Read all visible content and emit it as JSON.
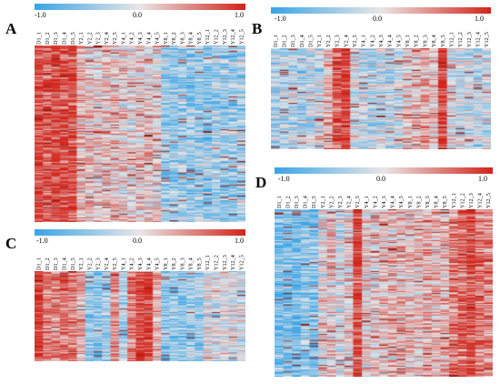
{
  "colors": {
    "low": "#3aa4e6",
    "mid": "#e9e6e6",
    "high": "#d1241b",
    "mark_dark": "#8b1a14"
  },
  "scale_ticks": {
    "min": "-1.0",
    "mid": "0.0",
    "max": "1.0"
  },
  "panels": [
    {
      "id": "A",
      "letter": "A",
      "columns": [
        "D1_1",
        "D1_2",
        "D1_3",
        "D1_4",
        "D1_5",
        "Y2_1",
        "Y2_2",
        "Y2_3",
        "Y2_4",
        "Y2_5",
        "Y4_1",
        "Y4_2",
        "Y4_3",
        "Y4_4",
        "Y4_5",
        "Y8_1",
        "Y8_2",
        "Y8_3",
        "Y8_4",
        "Y8_5",
        "Y12_1",
        "Y12_2",
        "Y12_3",
        "Y12_4",
        "Y12_5"
      ],
      "pattern": [
        0.85,
        0.75,
        0.9,
        0.85,
        0.8,
        0.3,
        0.15,
        0.1,
        0.2,
        0.15,
        0.1,
        0.05,
        0.15,
        0.1,
        0.05,
        -0.45,
        -0.5,
        -0.4,
        -0.5,
        -0.45,
        -0.5,
        -0.4,
        -0.45,
        -0.5,
        -0.4
      ]
    },
    {
      "id": "B",
      "letter": "B",
      "columns": [
        "D1_1",
        "D1_2",
        "D1_3",
        "D1_4",
        "D1_5",
        "Y2_1",
        "Y2_2",
        "Y2_3",
        "Y2_4",
        "Y2_5",
        "Y4_1",
        "Y4_2",
        "Y4_3",
        "Y4_4",
        "Y4_5",
        "Y8_1",
        "Y8_2",
        "Y8_3",
        "Y8_4",
        "Y8_5",
        "Y12_1",
        "Y12_2",
        "Y12_3",
        "Y12_4",
        "Y12_5"
      ],
      "pattern": [
        -0.35,
        -0.3,
        -0.25,
        -0.3,
        -0.2,
        -0.15,
        0.25,
        0.75,
        0.95,
        -0.1,
        -0.25,
        -0.3,
        -0.2,
        -0.25,
        -0.15,
        0.1,
        0.2,
        0.3,
        0.15,
        0.95,
        -0.1,
        -0.2,
        -0.15,
        -0.25,
        -0.2
      ]
    },
    {
      "id": "C",
      "letter": "C",
      "columns": [
        "D1_1",
        "D1_2",
        "D1_3",
        "D1_4",
        "D1_5",
        "Y2_1",
        "Y2_2",
        "Y2_3",
        "Y2_4",
        "Y2_5",
        "Y4_1",
        "Y4_2",
        "Y4_3",
        "Y4_4",
        "Y4_5",
        "Y8_1",
        "Y8_2",
        "Y8_3",
        "Y8_4",
        "Y8_5",
        "Y12_1",
        "Y12_2",
        "Y12_3",
        "Y12_4",
        "Y12_5"
      ],
      "pattern": [
        0.9,
        0.5,
        0.4,
        0.55,
        0.45,
        0.2,
        -0.55,
        -0.6,
        -0.5,
        0.4,
        -0.45,
        0.5,
        0.85,
        0.9,
        0.2,
        -0.6,
        -0.55,
        -0.6,
        -0.5,
        -0.55,
        -0.1,
        -0.2,
        -0.1,
        -0.15,
        -0.2
      ]
    },
    {
      "id": "D",
      "letter": "D",
      "columns": [
        "D1_1",
        "D1_2",
        "D1_3",
        "D1_4",
        "D1_5",
        "Y2_1",
        "Y2_2",
        "Y2_3",
        "Y2_4",
        "Y2_5",
        "Y4_1",
        "Y4_2",
        "Y4_3",
        "Y4_4",
        "Y4_5",
        "Y8_1",
        "Y8_2",
        "Y8_3",
        "Y8_4",
        "Y8_5",
        "Y12_1",
        "Y12_2",
        "Y12_3",
        "Y12_4",
        "Y12_5"
      ],
      "pattern": [
        -0.65,
        -0.6,
        -0.65,
        -0.55,
        -0.6,
        0.05,
        0.15,
        -0.1,
        0.1,
        0.9,
        0.05,
        0.1,
        0.15,
        0.2,
        0.25,
        0.2,
        0.15,
        0.3,
        0.2,
        0.25,
        0.55,
        0.75,
        0.85,
        0.6,
        0.5
      ]
    }
  ],
  "chart_data": [
    {
      "type": "heatmap",
      "panel": "A",
      "x": [
        "D1_1",
        "D1_2",
        "D1_3",
        "D1_4",
        "D1_5",
        "Y2_1",
        "Y2_2",
        "Y2_3",
        "Y2_4",
        "Y2_5",
        "Y4_1",
        "Y4_2",
        "Y4_3",
        "Y4_4",
        "Y4_5",
        "Y8_1",
        "Y8_2",
        "Y8_3",
        "Y8_4",
        "Y8_5",
        "Y12_1",
        "Y12_2",
        "Y12_3",
        "Y12_4",
        "Y12_5"
      ],
      "color_range": [
        -1.0,
        1.0
      ]
    },
    {
      "type": "heatmap",
      "panel": "B",
      "x": [
        "D1_1",
        "D1_2",
        "D1_3",
        "D1_4",
        "D1_5",
        "Y2_1",
        "Y2_2",
        "Y2_3",
        "Y2_4",
        "Y2_5",
        "Y4_1",
        "Y4_2",
        "Y4_3",
        "Y4_4",
        "Y4_5",
        "Y8_1",
        "Y8_2",
        "Y8_3",
        "Y8_4",
        "Y8_5",
        "Y12_1",
        "Y12_2",
        "Y12_3",
        "Y12_4",
        "Y12_5"
      ],
      "color_range": [
        -1.0,
        1.0
      ]
    },
    {
      "type": "heatmap",
      "panel": "C",
      "x": [
        "D1_1",
        "D1_2",
        "D1_3",
        "D1_4",
        "D1_5",
        "Y2_1",
        "Y2_2",
        "Y2_3",
        "Y2_4",
        "Y2_5",
        "Y4_1",
        "Y4_2",
        "Y4_3",
        "Y4_4",
        "Y4_5",
        "Y8_1",
        "Y8_2",
        "Y8_3",
        "Y8_4",
        "Y8_5",
        "Y12_1",
        "Y12_2",
        "Y12_3",
        "Y12_4",
        "Y12_5"
      ],
      "color_range": [
        -1.0,
        1.0
      ]
    },
    {
      "type": "heatmap",
      "panel": "D",
      "x": [
        "D1_1",
        "D1_2",
        "D1_3",
        "D1_4",
        "D1_5",
        "Y2_1",
        "Y2_2",
        "Y2_3",
        "Y2_4",
        "Y2_5",
        "Y4_1",
        "Y4_2",
        "Y4_3",
        "Y4_4",
        "Y4_5",
        "Y8_1",
        "Y8_2",
        "Y8_3",
        "Y8_4",
        "Y8_5",
        "Y12_1",
        "Y12_2",
        "Y12_3",
        "Y12_4",
        "Y12_5"
      ],
      "color_range": [
        -1.0,
        1.0
      ]
    }
  ]
}
